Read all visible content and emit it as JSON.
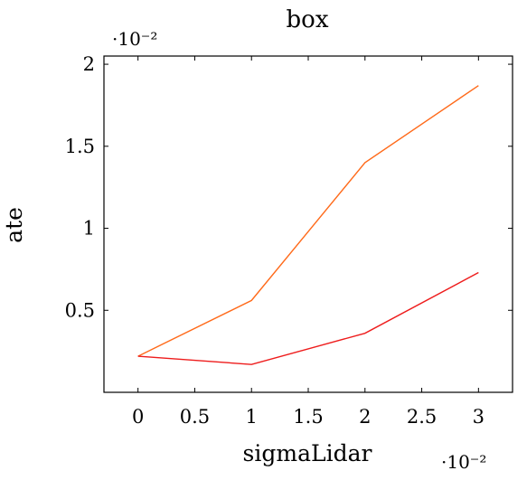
{
  "chart_data": {
    "type": "line",
    "title": "box",
    "xlabel": "sigmaLidar",
    "ylabel": "ate",
    "x_multiplier": "·10⁻²",
    "y_multiplier": "·10⁻²",
    "x": [
      0,
      1,
      2,
      3
    ],
    "xlim": [
      -0.3,
      3.3
    ],
    "ylim": [
      0,
      2.05
    ],
    "x_ticks": [
      "0",
      "0.5",
      "1",
      "1.5",
      "2",
      "2.5",
      "3"
    ],
    "x_tick_values": [
      0,
      0.5,
      1,
      1.5,
      2,
      2.5,
      3
    ],
    "y_ticks": [
      "0.5",
      "1",
      "1.5",
      "2"
    ],
    "y_tick_values": [
      0.5,
      1,
      1.5,
      2
    ],
    "grid": false,
    "series": [
      {
        "values": [
          0.22,
          0.56,
          1.4,
          1.87
        ],
        "color": "#ff6a1a"
      },
      {
        "values": [
          0.22,
          0.17,
          0.36,
          0.73
        ],
        "color": "#ee1c1c"
      }
    ]
  }
}
